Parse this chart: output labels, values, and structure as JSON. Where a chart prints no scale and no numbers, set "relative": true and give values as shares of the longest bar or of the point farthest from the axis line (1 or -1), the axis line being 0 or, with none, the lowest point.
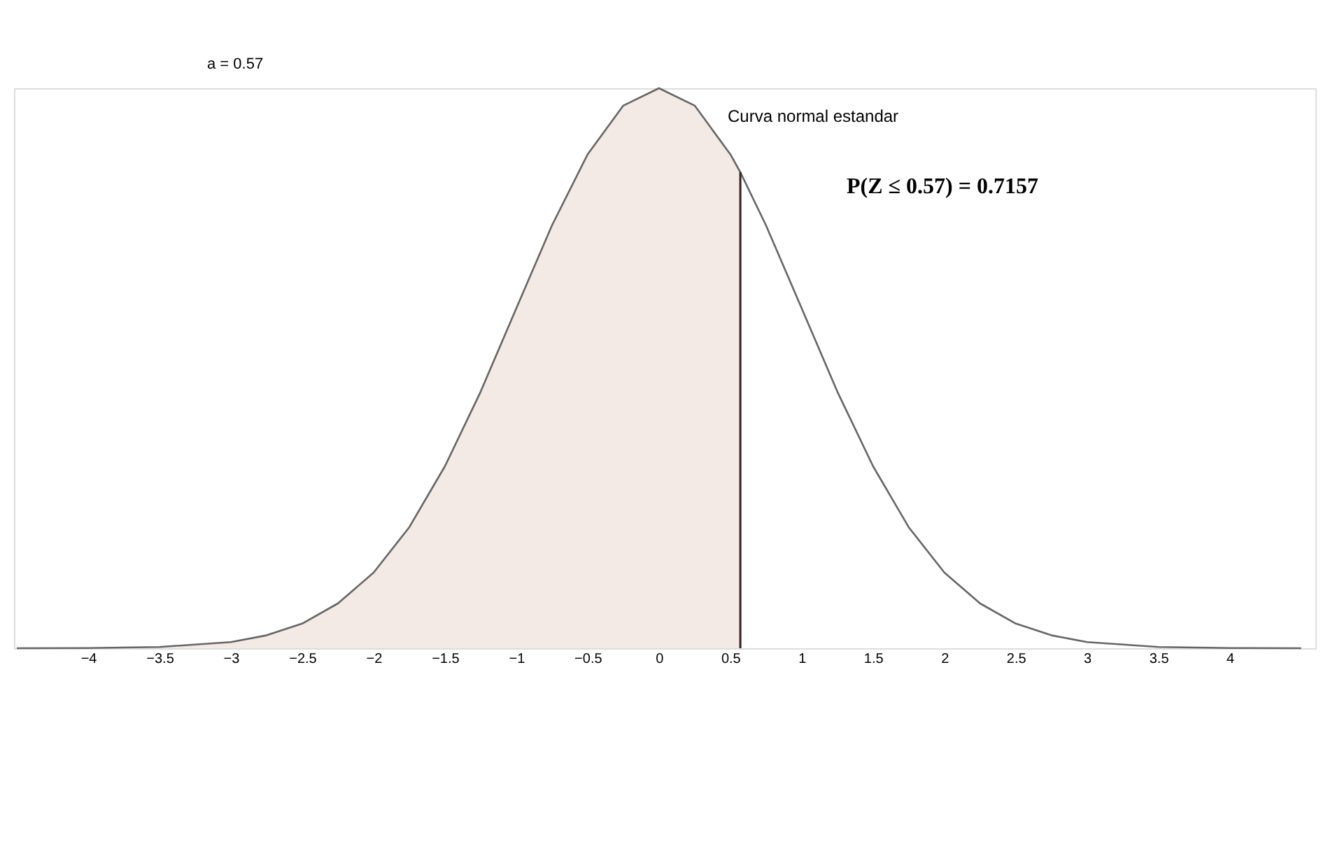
{
  "chart_data": {
    "type": "line",
    "title": "Curva normal estandar",
    "relative": true,
    "grid": false,
    "ref_lines": [
      {
        "axis": "x",
        "value": 0.57,
        "color": "#3a1f1a"
      }
    ],
    "marker": "none",
    "line_style": "solid",
    "tick_labels": "x",
    "xlim": [
      -4.52,
      4.6
    ],
    "xticks": [
      -4,
      -3.5,
      -3,
      -2.5,
      -2,
      -1.5,
      -1,
      -0.5,
      0,
      0.5,
      1,
      1.5,
      2,
      2.5,
      3,
      3.5,
      4
    ],
    "annotations": [
      "a = 0.57",
      "P(Z ≤ 0.57) = 0.7157"
    ],
    "series": [
      {
        "type": "line",
        "color": "#666666",
        "x": [
          -4.5,
          -4,
          -3.5,
          -3,
          -2.75,
          -2.5,
          -2.25,
          -2,
          -1.75,
          -1.5,
          -1.25,
          -1,
          -0.75,
          -0.5,
          -0.25,
          0,
          0.25,
          0.5,
          0.57,
          0.75,
          1,
          1.25,
          1.5,
          1.75,
          2,
          2.25,
          2.5,
          2.75,
          3,
          3.5,
          4,
          4.5
        ],
        "values": [
          0,
          0.0003,
          0.0022,
          0.011,
          0.023,
          0.044,
          0.08,
          0.135,
          0.216,
          0.325,
          0.458,
          0.607,
          0.755,
          0.882,
          0.969,
          1,
          0.969,
          0.882,
          0.85,
          0.755,
          0.607,
          0.458,
          0.325,
          0.216,
          0.135,
          0.08,
          0.044,
          0.023,
          0.011,
          0.0022,
          0.0003,
          0
        ]
      },
      {
        "type": "area",
        "color": "#f3e9e5",
        "x": [
          -4.5,
          -4,
          -3.5,
          -3,
          -2.75,
          -2.5,
          -2.25,
          -2,
          -1.75,
          -1.5,
          -1.25,
          -1,
          -0.75,
          -0.5,
          -0.25,
          0,
          0.25,
          0.5,
          0.57
        ],
        "values": [
          0,
          0.0003,
          0.0022,
          0.011,
          0.023,
          0.044,
          0.08,
          0.135,
          0.216,
          0.325,
          0.458,
          0.607,
          0.755,
          0.882,
          0.969,
          1,
          0.969,
          0.882,
          0.85
        ]
      }
    ]
  }
}
